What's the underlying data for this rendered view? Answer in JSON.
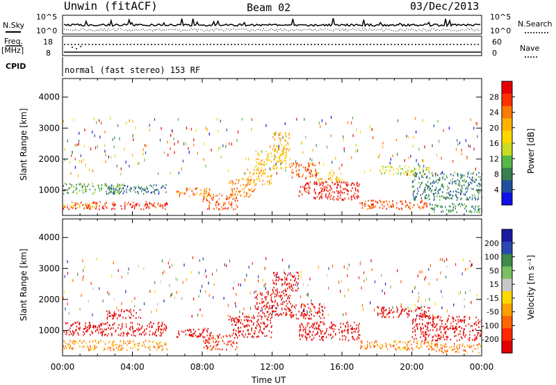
{
  "header": {
    "station": "Unwin (fitACF)",
    "beam": "Beam 02",
    "date": "03/Dec/2013"
  },
  "summary": {
    "nsky_label": "N.Sky",
    "nsky_ticks": [
      "10^5",
      "10^0"
    ],
    "nsearch_label": "N.Search",
    "nsearch_ticks": [
      "10^5",
      "10^0"
    ],
    "freq_label_1": "Freq.",
    "freq_label_2": "[MHz]",
    "freq_ticks": [
      "18",
      "8"
    ],
    "nave_label": "Nave",
    "nave_ticks": [
      "60",
      "0"
    ],
    "cpid_label": "CPID",
    "cpid_text": "normal (fast stereo) 153 RF"
  },
  "axes": {
    "ylabel": "Slant Range [km]",
    "yticks": [
      "4000",
      "3000",
      "2000",
      "1000"
    ],
    "xlabel": "Time UT",
    "xticks": [
      "00:00",
      "04:00",
      "08:00",
      "12:00",
      "16:00",
      "20:00",
      "00:00"
    ]
  },
  "colorbars": {
    "power": {
      "label": "Power [dB]",
      "ticks": [
        "28",
        "24",
        "20",
        "16",
        "12",
        "8",
        "4"
      ],
      "colors": [
        "#e80000",
        "#ff3000",
        "#ff7a00",
        "#ffb300",
        "#ffd800",
        "#c8dc20",
        "#58b848",
        "#388050",
        "#2050a0",
        "#1010e8"
      ]
    },
    "velocity": {
      "label": "Velocity [m s⁻¹]",
      "ticks": [
        "200",
        "100",
        "50",
        "15",
        "-15",
        "-50",
        "-100",
        "-200"
      ],
      "colors": [
        "#1a1aa0",
        "#2a48b0",
        "#3e8a4a",
        "#78c060",
        "#c8c8c8",
        "#ffd800",
        "#ffa000",
        "#ff6400",
        "#ff2800",
        "#e00000"
      ]
    }
  },
  "chart_data": [
    {
      "type": "heatmap",
      "title": "Power",
      "xlabel": "Time UT",
      "ylabel": "Slant Range [km]",
      "xlim_hours": [
        0,
        24
      ],
      "ylim_km": [
        180,
        4600
      ],
      "colorbar_label": "Power [dB]",
      "colorbar_range": [
        0,
        30
      ],
      "regions": [
        {
          "t": [
            0.0,
            6.0
          ],
          "r": [
            400,
            650
          ],
          "value": 27
        },
        {
          "t": [
            0.0,
            2.0
          ],
          "r": [
            450,
            600
          ],
          "value": 18
        },
        {
          "t": [
            0.0,
            3.5
          ],
          "r": [
            900,
            1250
          ],
          "value": 10
        },
        {
          "t": [
            2.5,
            6.0
          ],
          "r": [
            900,
            1200
          ],
          "value": 6
        },
        {
          "t": [
            6.5,
            8.5
          ],
          "r": [
            800,
            1100
          ],
          "value": 22
        },
        {
          "t": [
            8.0,
            10.0
          ],
          "r": [
            400,
            900
          ],
          "value": 24
        },
        {
          "t": [
            9.5,
            11.0
          ],
          "r": [
            800,
            1400
          ],
          "value": 22
        },
        {
          "t": [
            10.5,
            12.0
          ],
          "r": [
            1200,
            1700
          ],
          "value": 20
        },
        {
          "t": [
            11.0,
            13.0
          ],
          "r": [
            1700,
            2300
          ],
          "value": 18
        },
        {
          "t": [
            12.0,
            13.0
          ],
          "r": [
            2300,
            2900
          ],
          "value": 20
        },
        {
          "t": [
            13.0,
            14.5
          ],
          "r": [
            1400,
            1900
          ],
          "value": 24
        },
        {
          "t": [
            13.5,
            17.0
          ],
          "r": [
            700,
            1300
          ],
          "value": 28
        },
        {
          "t": [
            14.5,
            16.0
          ],
          "r": [
            1300,
            1600
          ],
          "value": 18
        },
        {
          "t": [
            17.0,
            21.0
          ],
          "r": [
            400,
            700
          ],
          "value": 24
        },
        {
          "t": [
            18.0,
            21.0
          ],
          "r": [
            1500,
            1800
          ],
          "value": 14
        },
        {
          "t": [
            20.0,
            24.0
          ],
          "r": [
            700,
            1600
          ],
          "value": 7
        },
        {
          "t": [
            21.0,
            24.0
          ],
          "r": [
            300,
            600
          ],
          "value": 8
        }
      ]
    },
    {
      "type": "heatmap",
      "title": "Velocity",
      "xlabel": "Time UT",
      "ylabel": "Slant Range [km]",
      "xlim_hours": [
        0,
        24
      ],
      "ylim_km": [
        180,
        4600
      ],
      "colorbar_label": "Velocity [m s⁻¹]",
      "colorbar_range": [
        -200,
        200
      ],
      "regions": [
        {
          "t": [
            0.0,
            6.0
          ],
          "r": [
            380,
            700
          ],
          "value": -70
        },
        {
          "t": [
            0.0,
            6.0
          ],
          "r": [
            850,
            1300
          ],
          "value": -200
        },
        {
          "t": [
            2.5,
            4.5
          ],
          "r": [
            1400,
            1700
          ],
          "value": -200
        },
        {
          "t": [
            6.5,
            8.5
          ],
          "r": [
            800,
            1100
          ],
          "value": -200
        },
        {
          "t": [
            8.0,
            10.0
          ],
          "r": [
            400,
            900
          ],
          "value": -150
        },
        {
          "t": [
            9.5,
            12.0
          ],
          "r": [
            800,
            1500
          ],
          "value": -200
        },
        {
          "t": [
            11.0,
            13.0
          ],
          "r": [
            1500,
            2300
          ],
          "value": -200
        },
        {
          "t": [
            12.0,
            13.5
          ],
          "r": [
            2300,
            2900
          ],
          "value": -200
        },
        {
          "t": [
            13.0,
            15.0
          ],
          "r": [
            1400,
            1900
          ],
          "value": -200
        },
        {
          "t": [
            13.5,
            17.0
          ],
          "r": [
            700,
            1300
          ],
          "value": -200
        },
        {
          "t": [
            17.0,
            21.5
          ],
          "r": [
            400,
            700
          ],
          "value": -80
        },
        {
          "t": [
            18.0,
            21.0
          ],
          "r": [
            1450,
            1800
          ],
          "value": -200
        },
        {
          "t": [
            20.0,
            24.0
          ],
          "r": [
            700,
            1500
          ],
          "value": -200
        },
        {
          "t": [
            21.0,
            24.0
          ],
          "r": [
            300,
            600
          ],
          "value": -80
        }
      ]
    }
  ]
}
